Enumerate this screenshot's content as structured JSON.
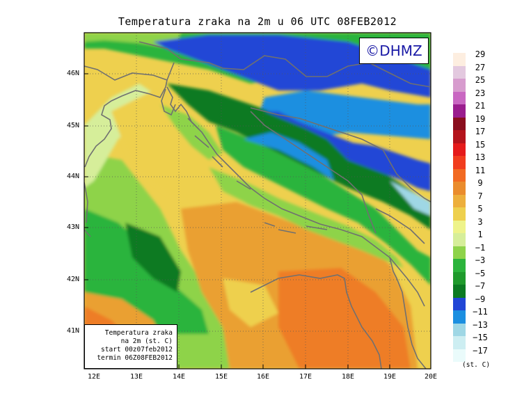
{
  "title": "Temperatura zraka na 2m u 06 UTC 08FEB2012",
  "copyright": "©DHMZ",
  "info_box": {
    "line1": "Temperatura zraka",
    "line2": "na 2m (st. C)",
    "line3": "start 00z07feb2012",
    "line4": "termin 06Z08FEB2012"
  },
  "axes": {
    "x_ticks": [
      "12E",
      "13E",
      "14E",
      "15E",
      "16E",
      "17E",
      "18E",
      "19E",
      "20E"
    ],
    "y_ticks": [
      "46N",
      "45N",
      "44N",
      "43N",
      "42N",
      "41N"
    ]
  },
  "legend": {
    "units": "(st. C)",
    "labels": [
      "29",
      "27",
      "25",
      "23",
      "21",
      "19",
      "17",
      "15",
      "13",
      "11",
      "9",
      "7",
      "5",
      "3",
      "1",
      "−1",
      "−3",
      "−5",
      "−7",
      "−9",
      "−11",
      "−13",
      "−15",
      "−17"
    ],
    "colors": [
      "#fdeee0",
      "#e3c9df",
      "#d79cce",
      "#c967c2",
      "#9a1d8e",
      "#8a0e1e",
      "#b4141c",
      "#e51b1b",
      "#f13d1e",
      "#f26a22",
      "#ea8c2d",
      "#edaf3c",
      "#eed04e",
      "#eef38a",
      "#d6ee9a",
      "#8ed34a",
      "#2cb43c",
      "#1f9a2c",
      "#0c7a22",
      "#2146d6",
      "#1c8fe0",
      "#9fd7e5",
      "#cdeef2",
      "#eafbfb"
    ]
  },
  "colors": {
    "sea_warm": "#eaa033",
    "sea_hot": "#ee7d26",
    "coast_yellow": "#eed04e",
    "green": "#2cb43c",
    "dark_green": "#0c7a22",
    "blue": "#2146d6",
    "border_gray": "#707070"
  }
}
